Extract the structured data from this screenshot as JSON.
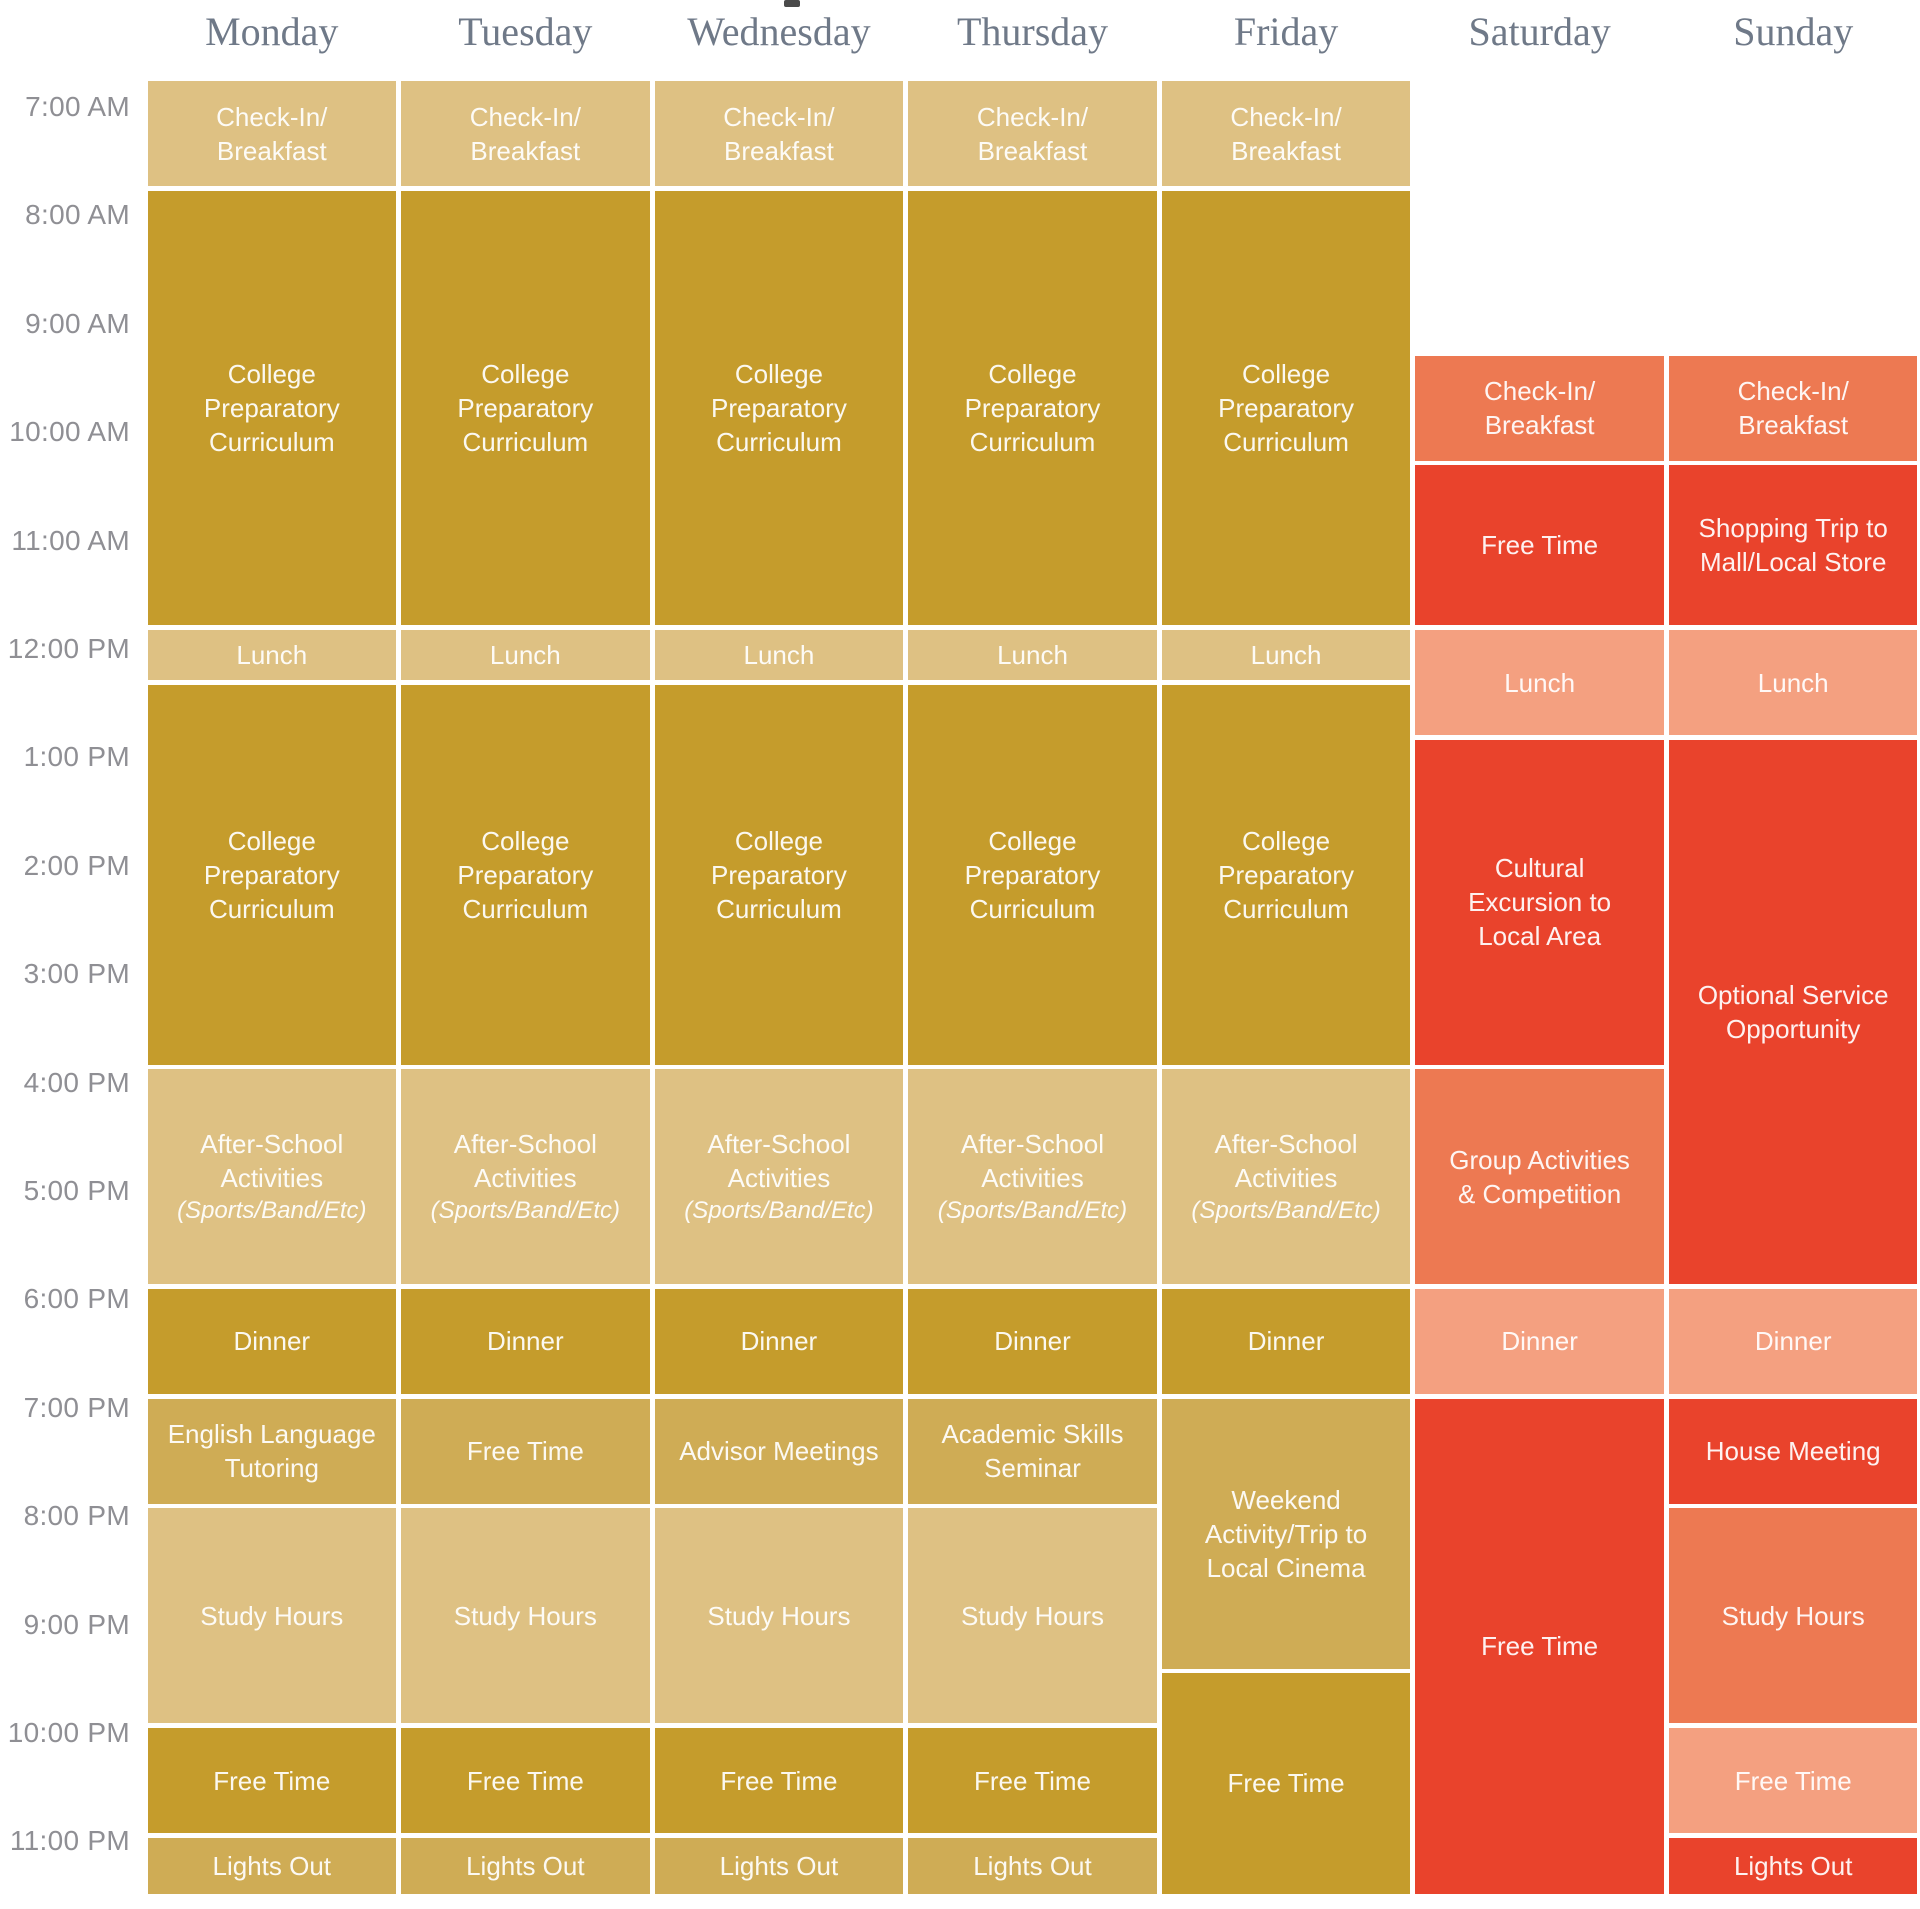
{
  "chart_data": {
    "type": "table",
    "days": [
      "Monday",
      "Tuesday",
      "Wednesday",
      "Thursday",
      "Friday",
      "Saturday",
      "Sunday"
    ],
    "time_labels": [
      "7:00 AM",
      "8:00 AM",
      "9:00 AM",
      "10:00 AM",
      "11:00 AM",
      "12:00 PM",
      "1:00 PM",
      "2:00 PM",
      "3:00 PM",
      "4:00 PM",
      "5:00 PM",
      "6:00 PM",
      "7:00 PM",
      "8:00 PM",
      "9:00 PM",
      "10:00 PM",
      "11:00 PM"
    ],
    "axis": {
      "time_start": "07:00",
      "time_end": "23:33"
    },
    "events": [
      {
        "day": "Monday",
        "start": "07:00",
        "end": "08:00",
        "lines": [
          "Check-In/",
          "Breakfast"
        ],
        "color": "gold_light"
      },
      {
        "day": "Monday",
        "start": "08:00",
        "end": "12:00",
        "lines": [
          "College",
          "Preparatory",
          "Curriculum"
        ],
        "color": "gold_dark"
      },
      {
        "day": "Monday",
        "start": "12:00",
        "end": "12:30",
        "lines": [
          "Lunch"
        ],
        "color": "gold_light"
      },
      {
        "day": "Monday",
        "start": "12:30",
        "end": "16:00",
        "lines": [
          "College",
          "Preparatory",
          "Curriculum"
        ],
        "color": "gold_dark"
      },
      {
        "day": "Monday",
        "start": "16:00",
        "end": "18:00",
        "lines": [
          "After-School",
          "Activities"
        ],
        "sublabel": "(Sports/Band/Etc)",
        "color": "gold_light"
      },
      {
        "day": "Monday",
        "start": "18:00",
        "end": "19:00",
        "lines": [
          "Dinner"
        ],
        "color": "gold_dark"
      },
      {
        "day": "Monday",
        "start": "19:00",
        "end": "20:00",
        "lines": [
          "English Language",
          "Tutoring"
        ],
        "color": "gold_medium"
      },
      {
        "day": "Monday",
        "start": "20:00",
        "end": "22:00",
        "lines": [
          "Study Hours"
        ],
        "color": "gold_light"
      },
      {
        "day": "Monday",
        "start": "22:00",
        "end": "23:00",
        "lines": [
          "Free Time"
        ],
        "color": "gold_dark"
      },
      {
        "day": "Monday",
        "start": "23:00",
        "end": "23:33",
        "lines": [
          "Lights Out"
        ],
        "color": "gold_medium"
      },
      {
        "day": "Tuesday",
        "start": "07:00",
        "end": "08:00",
        "lines": [
          "Check-In/",
          "Breakfast"
        ],
        "color": "gold_light"
      },
      {
        "day": "Tuesday",
        "start": "08:00",
        "end": "12:00",
        "lines": [
          "College",
          "Preparatory",
          "Curriculum"
        ],
        "color": "gold_dark"
      },
      {
        "day": "Tuesday",
        "start": "12:00",
        "end": "12:30",
        "lines": [
          "Lunch"
        ],
        "color": "gold_light"
      },
      {
        "day": "Tuesday",
        "start": "12:30",
        "end": "16:00",
        "lines": [
          "College",
          "Preparatory",
          "Curriculum"
        ],
        "color": "gold_dark"
      },
      {
        "day": "Tuesday",
        "start": "16:00",
        "end": "18:00",
        "lines": [
          "After-School",
          "Activities"
        ],
        "sublabel": "(Sports/Band/Etc)",
        "color": "gold_light"
      },
      {
        "day": "Tuesday",
        "start": "18:00",
        "end": "19:00",
        "lines": [
          "Dinner"
        ],
        "color": "gold_dark"
      },
      {
        "day": "Tuesday",
        "start": "19:00",
        "end": "20:00",
        "lines": [
          "Free Time"
        ],
        "color": "gold_medium"
      },
      {
        "day": "Tuesday",
        "start": "20:00",
        "end": "22:00",
        "lines": [
          "Study Hours"
        ],
        "color": "gold_light"
      },
      {
        "day": "Tuesday",
        "start": "22:00",
        "end": "23:00",
        "lines": [
          "Free Time"
        ],
        "color": "gold_dark"
      },
      {
        "day": "Tuesday",
        "start": "23:00",
        "end": "23:33",
        "lines": [
          "Lights Out"
        ],
        "color": "gold_medium"
      },
      {
        "day": "Wednesday",
        "start": "07:00",
        "end": "08:00",
        "lines": [
          "Check-In/",
          "Breakfast"
        ],
        "color": "gold_light"
      },
      {
        "day": "Wednesday",
        "start": "08:00",
        "end": "12:00",
        "lines": [
          "College",
          "Preparatory",
          "Curriculum"
        ],
        "color": "gold_dark"
      },
      {
        "day": "Wednesday",
        "start": "12:00",
        "end": "12:30",
        "lines": [
          "Lunch"
        ],
        "color": "gold_light"
      },
      {
        "day": "Wednesday",
        "start": "12:30",
        "end": "16:00",
        "lines": [
          "College",
          "Preparatory",
          "Curriculum"
        ],
        "color": "gold_dark"
      },
      {
        "day": "Wednesday",
        "start": "16:00",
        "end": "18:00",
        "lines": [
          "After-School",
          "Activities"
        ],
        "sublabel": "(Sports/Band/Etc)",
        "color": "gold_light"
      },
      {
        "day": "Wednesday",
        "start": "18:00",
        "end": "19:00",
        "lines": [
          "Dinner"
        ],
        "color": "gold_dark"
      },
      {
        "day": "Wednesday",
        "start": "19:00",
        "end": "20:00",
        "lines": [
          "Advisor Meetings"
        ],
        "color": "gold_medium"
      },
      {
        "day": "Wednesday",
        "start": "20:00",
        "end": "22:00",
        "lines": [
          "Study Hours"
        ],
        "color": "gold_light"
      },
      {
        "day": "Wednesday",
        "start": "22:00",
        "end": "23:00",
        "lines": [
          "Free Time"
        ],
        "color": "gold_dark"
      },
      {
        "day": "Wednesday",
        "start": "23:00",
        "end": "23:33",
        "lines": [
          "Lights Out"
        ],
        "color": "gold_medium"
      },
      {
        "day": "Thursday",
        "start": "07:00",
        "end": "08:00",
        "lines": [
          "Check-In/",
          "Breakfast"
        ],
        "color": "gold_light"
      },
      {
        "day": "Thursday",
        "start": "08:00",
        "end": "12:00",
        "lines": [
          "College",
          "Preparatory",
          "Curriculum"
        ],
        "color": "gold_dark"
      },
      {
        "day": "Thursday",
        "start": "12:00",
        "end": "12:30",
        "lines": [
          "Lunch"
        ],
        "color": "gold_light"
      },
      {
        "day": "Thursday",
        "start": "12:30",
        "end": "16:00",
        "lines": [
          "College",
          "Preparatory",
          "Curriculum"
        ],
        "color": "gold_dark"
      },
      {
        "day": "Thursday",
        "start": "16:00",
        "end": "18:00",
        "lines": [
          "After-School",
          "Activities"
        ],
        "sublabel": "(Sports/Band/Etc)",
        "color": "gold_light"
      },
      {
        "day": "Thursday",
        "start": "18:00",
        "end": "19:00",
        "lines": [
          "Dinner"
        ],
        "color": "gold_dark"
      },
      {
        "day": "Thursday",
        "start": "19:00",
        "end": "20:00",
        "lines": [
          "Academic Skills",
          "Seminar"
        ],
        "color": "gold_medium"
      },
      {
        "day": "Thursday",
        "start": "20:00",
        "end": "22:00",
        "lines": [
          "Study Hours"
        ],
        "color": "gold_light"
      },
      {
        "day": "Thursday",
        "start": "22:00",
        "end": "23:00",
        "lines": [
          "Free Time"
        ],
        "color": "gold_dark"
      },
      {
        "day": "Thursday",
        "start": "23:00",
        "end": "23:33",
        "lines": [
          "Lights Out"
        ],
        "color": "gold_medium"
      },
      {
        "day": "Friday",
        "start": "07:00",
        "end": "08:00",
        "lines": [
          "Check-In/",
          "Breakfast"
        ],
        "color": "gold_light"
      },
      {
        "day": "Friday",
        "start": "08:00",
        "end": "12:00",
        "lines": [
          "College",
          "Preparatory",
          "Curriculum"
        ],
        "color": "gold_dark"
      },
      {
        "day": "Friday",
        "start": "12:00",
        "end": "12:30",
        "lines": [
          "Lunch"
        ],
        "color": "gold_light"
      },
      {
        "day": "Friday",
        "start": "12:30",
        "end": "16:00",
        "lines": [
          "College",
          "Preparatory",
          "Curriculum"
        ],
        "color": "gold_dark"
      },
      {
        "day": "Friday",
        "start": "16:00",
        "end": "18:00",
        "lines": [
          "After-School",
          "Activities"
        ],
        "sublabel": "(Sports/Band/Etc)",
        "color": "gold_light"
      },
      {
        "day": "Friday",
        "start": "18:00",
        "end": "19:00",
        "lines": [
          "Dinner"
        ],
        "color": "gold_dark"
      },
      {
        "day": "Friday",
        "start": "19:00",
        "end": "21:30",
        "lines": [
          "Weekend",
          "Activity/Trip to",
          "Local Cinema"
        ],
        "color": "gold_medium"
      },
      {
        "day": "Friday",
        "start": "21:30",
        "end": "23:33",
        "lines": [
          "Free Time"
        ],
        "color": "gold_dark"
      },
      {
        "day": "Saturday",
        "start": "09:30",
        "end": "10:30",
        "lines": [
          "Check-In/",
          "Breakfast"
        ],
        "color": "weekend_orange"
      },
      {
        "day": "Saturday",
        "start": "10:30",
        "end": "12:00",
        "lines": [
          "Free Time"
        ],
        "color": "weekend_red"
      },
      {
        "day": "Saturday",
        "start": "12:00",
        "end": "13:00",
        "lines": [
          "Lunch"
        ],
        "color": "weekend_salmon"
      },
      {
        "day": "Saturday",
        "start": "13:00",
        "end": "16:00",
        "lines": [
          "Cultural",
          "Excursion to",
          "Local Area"
        ],
        "color": "weekend_red"
      },
      {
        "day": "Saturday",
        "start": "16:00",
        "end": "18:00",
        "lines": [
          "Group Activities",
          "& Competition"
        ],
        "color": "weekend_orange"
      },
      {
        "day": "Saturday",
        "start": "18:00",
        "end": "19:00",
        "lines": [
          "Dinner"
        ],
        "color": "weekend_salmon"
      },
      {
        "day": "Saturday",
        "start": "19:00",
        "end": "23:33",
        "lines": [
          "Free Time"
        ],
        "color": "weekend_red"
      },
      {
        "day": "Sunday",
        "start": "09:30",
        "end": "10:30",
        "lines": [
          "Check-In/",
          "Breakfast"
        ],
        "color": "weekend_orange"
      },
      {
        "day": "Sunday",
        "start": "10:30",
        "end": "12:00",
        "lines": [
          "Shopping Trip to",
          "Mall/Local Store"
        ],
        "color": "weekend_red"
      },
      {
        "day": "Sunday",
        "start": "12:00",
        "end": "13:00",
        "lines": [
          "Lunch"
        ],
        "color": "weekend_salmon"
      },
      {
        "day": "Sunday",
        "start": "13:00",
        "end": "18:00",
        "lines": [
          "Optional Service",
          "Opportunity"
        ],
        "color": "weekend_red"
      },
      {
        "day": "Sunday",
        "start": "18:00",
        "end": "19:00",
        "lines": [
          "Dinner"
        ],
        "color": "weekend_salmon"
      },
      {
        "day": "Sunday",
        "start": "19:00",
        "end": "20:00",
        "lines": [
          "House Meeting"
        ],
        "color": "weekend_red"
      },
      {
        "day": "Sunday",
        "start": "20:00",
        "end": "22:00",
        "lines": [
          "Study Hours"
        ],
        "color": "weekend_orange"
      },
      {
        "day": "Sunday",
        "start": "22:00",
        "end": "23:00",
        "lines": [
          "Free Time"
        ],
        "color": "weekend_salmon"
      },
      {
        "day": "Sunday",
        "start": "23:00",
        "end": "23:33",
        "lines": [
          "Lights Out"
        ],
        "color": "weekend_red"
      }
    ]
  },
  "colors": {
    "gold_dark": "#C59C2C",
    "gold_medium": "#CFAC55",
    "gold_light": "#DEC183",
    "weekend_orange": "#ED7952",
    "weekend_red": "#E9432C",
    "weekend_salmon": "#F4A080",
    "day_header_text": "#6F7988",
    "time_label_text": "#8F8F94"
  }
}
